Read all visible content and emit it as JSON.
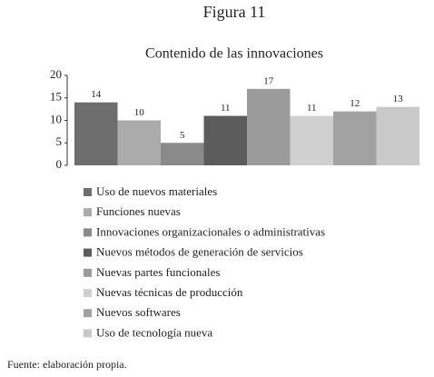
{
  "chart_data": {
    "type": "bar",
    "title": "Figura 11",
    "subtitle": "Contenido de las innovaciones",
    "categories": [
      "Uso de nuevos materiales",
      "Funciones nuevas",
      "Innovaciones organizacionales o administrativas",
      "Nuevos métodos de generación de servicios",
      "Nuevas partes funcionales",
      "Nuevas técnicas de producción",
      "Nuevos softwares",
      "Uso de tecnología nueva"
    ],
    "values": [
      14,
      10,
      5,
      11,
      17,
      11,
      12,
      13
    ],
    "colors": [
      "#6e6e6e",
      "#ababab",
      "#8a8a8a",
      "#5c5c5c",
      "#9b9b9b",
      "#d0d0d0",
      "#a2a2a2",
      "#c9c9c9"
    ],
    "ylim": [
      0,
      20
    ],
    "yticks": [
      0,
      5,
      10,
      15,
      20
    ],
    "source": "Fuente: elaboración propia."
  }
}
